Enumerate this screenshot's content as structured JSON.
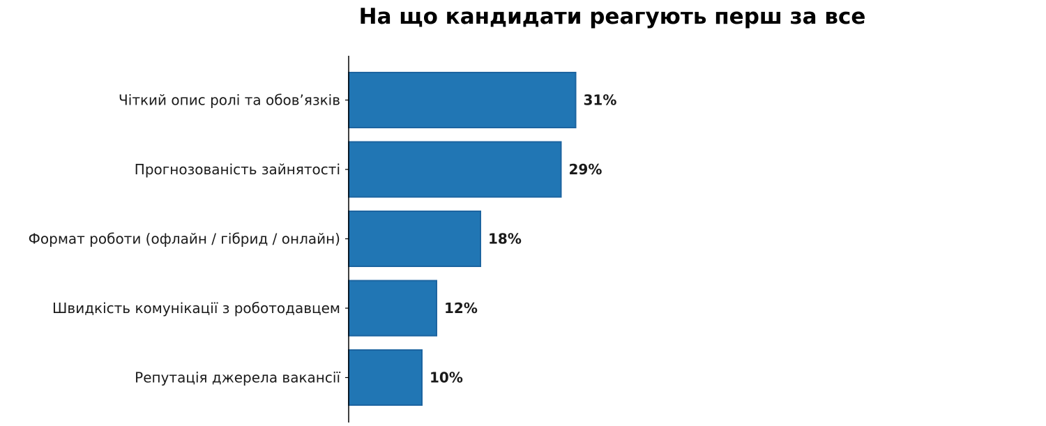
{
  "chart_data": {
    "type": "bar",
    "orientation": "horizontal",
    "title": "На що кандидати реагують перш за все",
    "xlabel": "",
    "ylabel": "",
    "categories": [
      "Чіткий опис ролі та обов’язків",
      "Прогнозованість зайнятості",
      "Формат роботи (офлайн / гібрид / онлайн)",
      "Швидкість комунікації з роботодавцем",
      "Репутація джерела вакансії"
    ],
    "values": [
      31,
      29,
      18,
      12,
      10
    ],
    "value_labels": [
      "31%",
      "29%",
      "18%",
      "12%",
      "10%"
    ],
    "unit": "%",
    "xlim": [
      0,
      95
    ],
    "grid": false,
    "legend": "none",
    "bar_color": "#2176b4",
    "bar_edge_color": "#1c64a0"
  }
}
